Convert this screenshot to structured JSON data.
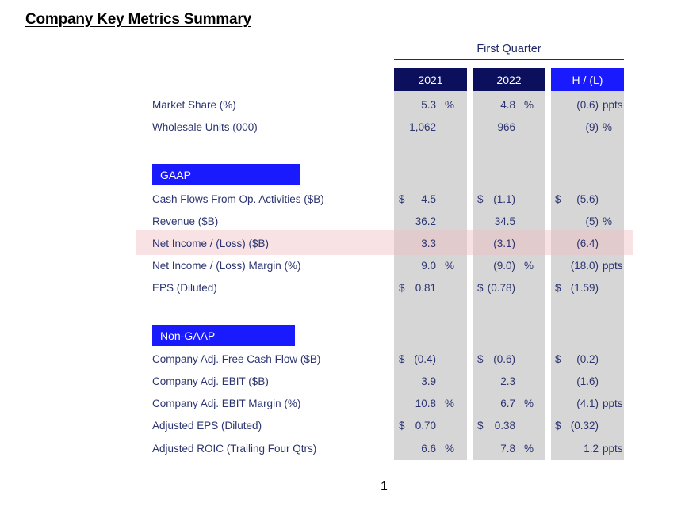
{
  "title": "Company Key Metrics Summary",
  "period_label": "First Quarter",
  "headers": {
    "y2021": "2021",
    "y2022": "2022",
    "hl": "H / (L)"
  },
  "sections": {
    "gaap": "GAAP",
    "nongaap": "Non-GAAP"
  },
  "rows": [
    {
      "label": "Market Share (%)",
      "a1": "",
      "a2": "5.3",
      "a3": "%",
      "b1": "",
      "b2": "4.8",
      "b3": "%",
      "c1": "",
      "c2": "(0.6)",
      "c3": "ppts"
    },
    {
      "label": "Wholesale Units (000)",
      "a1": "",
      "a2": "1,062",
      "a3": "",
      "b1": "",
      "b2": "966",
      "b3": "",
      "c1": "",
      "c2": "(9)",
      "c3": "%"
    },
    {
      "label": "Cash Flows From Op. Activities ($B)",
      "a1": "$",
      "a2": "4.5",
      "a3": "",
      "b1": "$",
      "b2": "(1.1)",
      "b3": "",
      "c1": "$",
      "c2": "(5.6)",
      "c3": ""
    },
    {
      "label": "Revenue ($B)",
      "a1": "",
      "a2": "36.2",
      "a3": "",
      "b1": "",
      "b2": "34.5",
      "b3": "",
      "c1": "",
      "c2": "(5)",
      "c3": "%"
    },
    {
      "label": "Net Income / (Loss) ($B)",
      "a1": "",
      "a2": "3.3",
      "a3": "",
      "b1": "",
      "b2": "(3.1)",
      "b3": "",
      "c1": "",
      "c2": "(6.4)",
      "c3": ""
    },
    {
      "label": "Net Income / (Loss) Margin (%)",
      "a1": "",
      "a2": "9.0",
      "a3": "%",
      "b1": "",
      "b2": "(9.0)",
      "b3": "%",
      "c1": "",
      "c2": "(18.0)",
      "c3": "ppts"
    },
    {
      "label": "EPS (Diluted)",
      "a1": "$",
      "a2": "0.81",
      "a3": "",
      "b1": "$",
      "b2": "(0.78)",
      "b3": "",
      "c1": "$",
      "c2": "(1.59)",
      "c3": ""
    },
    {
      "label": "Company Adj. Free Cash Flow ($B)",
      "a1": "$",
      "a2": "(0.4)",
      "a3": "",
      "b1": "$",
      "b2": "(0.6)",
      "b3": "",
      "c1": "$",
      "c2": "(0.2)",
      "c3": ""
    },
    {
      "label": "Company Adj. EBIT ($B)",
      "a1": "",
      "a2": "3.9",
      "a3": "",
      "b1": "",
      "b2": "2.3",
      "b3": "",
      "c1": "",
      "c2": "(1.6)",
      "c3": ""
    },
    {
      "label": "Company Adj. EBIT Margin (%)",
      "a1": "",
      "a2": "10.8",
      "a3": "%",
      "b1": "",
      "b2": "6.7",
      "b3": "%",
      "c1": "",
      "c2": "(4.1)",
      "c3": "ppts"
    },
    {
      "label": "Adjusted EPS (Diluted)",
      "a1": "$",
      "a2": "0.70",
      "a3": "",
      "b1": "$",
      "b2": "0.38",
      "b3": "",
      "c1": "$",
      "c2": "(0.32)",
      "c3": ""
    },
    {
      "label": "Adjusted ROIC (Trailing Four Qtrs)",
      "a1": "",
      "a2": "6.6",
      "a3": "%",
      "b1": "",
      "b2": "7.8",
      "b3": "%",
      "c1": "",
      "c2": "1.2",
      "c3": "ppts"
    }
  ],
  "page_number": "1"
}
